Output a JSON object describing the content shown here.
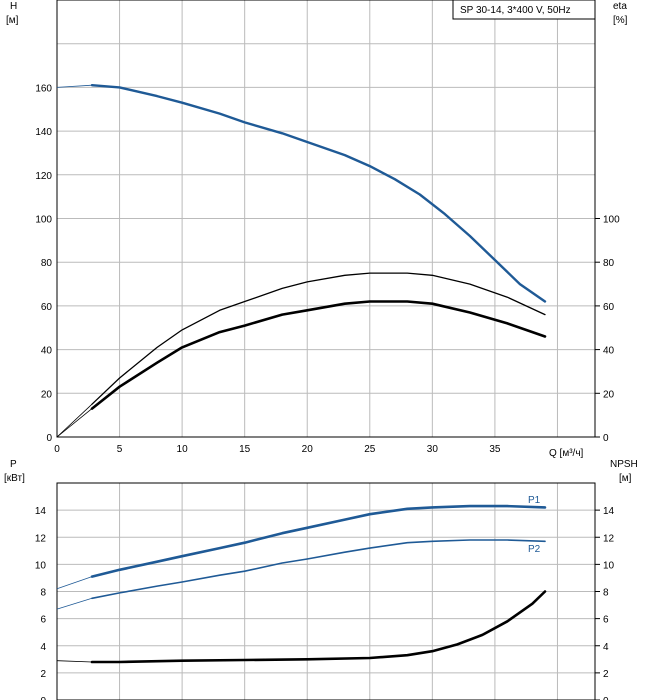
{
  "chart_data": [
    {
      "type": "line",
      "title": "SP 30-14, 3*400 V, 50Hz",
      "xlabel": "Q [м³/ч]",
      "ylabel_left": "H\n[м]",
      "ylabel_right": "eta\n[%]",
      "xlim": [
        0,
        43
      ],
      "ylim": [
        0,
        200
      ],
      "x_ticks": [
        0,
        5,
        10,
        15,
        20,
        25,
        30,
        35
      ],
      "y_ticks_left": [
        0,
        20,
        40,
        60,
        80,
        100,
        120,
        140,
        160
      ],
      "y_ticks_right": [
        0,
        20,
        40,
        60,
        80,
        100
      ],
      "grid": true,
      "series": [
        {
          "key": "head",
          "color": "#1f5a96",
          "x": [
            0,
            2.8,
            5,
            8,
            10,
            13,
            15,
            18,
            20,
            23,
            25,
            27,
            29,
            31,
            33,
            35,
            37,
            39
          ],
          "values": [
            160,
            161,
            160,
            156,
            153,
            148,
            144,
            139,
            135,
            129,
            124,
            118,
            111,
            102,
            92,
            81,
            70,
            62
          ]
        },
        {
          "key": "eta-thin",
          "color": "#000000",
          "x": [
            0,
            2.8,
            5,
            8,
            10,
            13,
            15,
            18,
            20,
            23,
            25,
            27,
            28,
            30,
            33,
            36,
            39
          ],
          "values": [
            0,
            15,
            27,
            41,
            49,
            58,
            62,
            68,
            71,
            74,
            75,
            75,
            75,
            74,
            70,
            64,
            56
          ]
        },
        {
          "key": "eta-thick",
          "color": "#000000",
          "x": [
            0,
            2.8,
            5,
            8,
            10,
            13,
            15,
            18,
            20,
            23,
            25,
            27,
            28,
            30,
            33,
            36,
            39
          ],
          "values": [
            0,
            13,
            23,
            34,
            41,
            48,
            51,
            56,
            58,
            61,
            62,
            62,
            62,
            61,
            57,
            52,
            46
          ]
        }
      ]
    },
    {
      "type": "line",
      "xlabel": "",
      "ylabel_left": "P\n[кВт]",
      "ylabel_right": "NPSH\n[м]",
      "xlim": [
        0,
        43
      ],
      "ylim": [
        0,
        16
      ],
      "y_ticks_left": [
        0,
        2,
        4,
        6,
        8,
        10,
        12,
        14
      ],
      "y_ticks_right": [
        0,
        2,
        4,
        6,
        8,
        10,
        12,
        14
      ],
      "grid": true,
      "series": [
        {
          "name": "P1",
          "color": "#1f5a96",
          "x": [
            0,
            2.8,
            5,
            8,
            10,
            13,
            15,
            18,
            20,
            23,
            25,
            28,
            30,
            33,
            36,
            39
          ],
          "values": [
            8.2,
            9.1,
            9.6,
            10.2,
            10.6,
            11.2,
            11.6,
            12.3,
            12.7,
            13.3,
            13.7,
            14.1,
            14.2,
            14.3,
            14.3,
            14.2
          ]
        },
        {
          "name": "P2",
          "color": "#1f5a96",
          "x": [
            0,
            2.8,
            5,
            8,
            10,
            13,
            15,
            18,
            20,
            23,
            25,
            28,
            30,
            33,
            36,
            39
          ],
          "values": [
            6.7,
            7.5,
            7.9,
            8.4,
            8.7,
            9.2,
            9.5,
            10.1,
            10.4,
            10.9,
            11.2,
            11.6,
            11.7,
            11.8,
            11.8,
            11.7
          ]
        },
        {
          "key": "npsh",
          "color": "#000000",
          "x": [
            0,
            2.8,
            5,
            10,
            15,
            20,
            25,
            28,
            30,
            32,
            34,
            36,
            38,
            39
          ],
          "values": [
            2.9,
            2.8,
            2.8,
            2.9,
            2.95,
            3.0,
            3.1,
            3.3,
            3.6,
            4.1,
            4.8,
            5.8,
            7.1,
            8.0
          ]
        }
      ]
    }
  ]
}
